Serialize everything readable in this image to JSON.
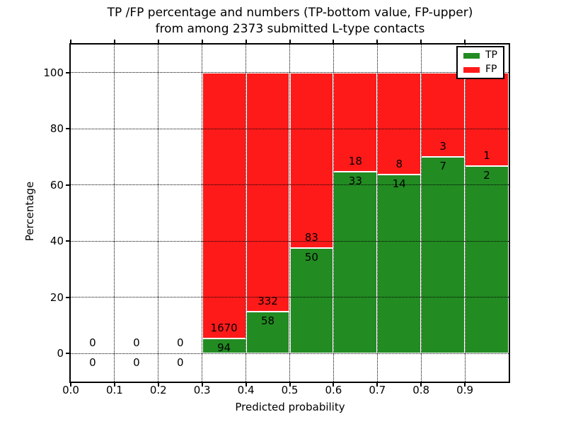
{
  "chart_data": {
    "type": "bar",
    "stacked": true,
    "title_line1": "TP /FP percentage and numbers (TP-bottom value, FP-upper)",
    "title_line2": "from among 2373 submitted L-type contacts",
    "xlabel": "Predicted probability",
    "ylabel": "Percentage",
    "total_contacts": 2373,
    "xlim": [
      0.0,
      1.0
    ],
    "ylim": [
      -10,
      110
    ],
    "grid": {
      "on": true,
      "style": "dotted",
      "color": "#000000"
    },
    "xticks": [
      {
        "value": 0.0,
        "label": "0.0"
      },
      {
        "value": 0.1,
        "label": "0.1"
      },
      {
        "value": 0.2,
        "label": "0.2"
      },
      {
        "value": 0.3,
        "label": "0.3"
      },
      {
        "value": 0.4,
        "label": "0.4"
      },
      {
        "value": 0.5,
        "label": "0.5"
      },
      {
        "value": 0.6,
        "label": "0.6"
      },
      {
        "value": 0.7,
        "label": "0.7"
      },
      {
        "value": 0.8,
        "label": "0.8"
      },
      {
        "value": 0.9,
        "label": "0.9"
      }
    ],
    "yticks": [
      {
        "value": 0,
        "label": "0"
      },
      {
        "value": 20,
        "label": "20"
      },
      {
        "value": 40,
        "label": "40"
      },
      {
        "value": 60,
        "label": "60"
      },
      {
        "value": 80,
        "label": "80"
      },
      {
        "value": 100,
        "label": "100"
      }
    ],
    "colors": {
      "tp": "#228B22",
      "fp": "#FF1A1A",
      "bar_edge": "#FFFFFF"
    },
    "legend": {
      "position": "upper right",
      "items": [
        {
          "label": "TP",
          "color": "#228B22"
        },
        {
          "label": "FP",
          "color": "#FF1A1A"
        }
      ]
    },
    "bins": [
      {
        "x_start": 0.0,
        "x_end": 0.1,
        "tp_count": 0,
        "fp_count": 0,
        "tp_pct": 0,
        "fp_pct": 0
      },
      {
        "x_start": 0.1,
        "x_end": 0.2,
        "tp_count": 0,
        "fp_count": 0,
        "tp_pct": 0,
        "fp_pct": 0
      },
      {
        "x_start": 0.2,
        "x_end": 0.3,
        "tp_count": 0,
        "fp_count": 0,
        "tp_pct": 0,
        "fp_pct": 0
      },
      {
        "x_start": 0.3,
        "x_end": 0.4,
        "tp_count": 94,
        "fp_count": 1670,
        "tp_pct": 5.33,
        "fp_pct": 94.67
      },
      {
        "x_start": 0.4,
        "x_end": 0.5,
        "tp_count": 58,
        "fp_count": 332,
        "tp_pct": 14.87,
        "fp_pct": 85.13
      },
      {
        "x_start": 0.5,
        "x_end": 0.6,
        "tp_count": 50,
        "fp_count": 83,
        "tp_pct": 37.59,
        "fp_pct": 62.41
      },
      {
        "x_start": 0.6,
        "x_end": 0.7,
        "tp_count": 33,
        "fp_count": 18,
        "tp_pct": 64.71,
        "fp_pct": 35.29
      },
      {
        "x_start": 0.7,
        "x_end": 0.8,
        "tp_count": 14,
        "fp_count": 8,
        "tp_pct": 63.64,
        "fp_pct": 36.36
      },
      {
        "x_start": 0.8,
        "x_end": 0.9,
        "tp_count": 7,
        "fp_count": 3,
        "tp_pct": 70.0,
        "fp_pct": 30.0
      },
      {
        "x_start": 0.9,
        "x_end": 1.0,
        "tp_count": 2,
        "fp_count": 1,
        "tp_pct": 66.67,
        "fp_pct": 33.33
      }
    ]
  }
}
